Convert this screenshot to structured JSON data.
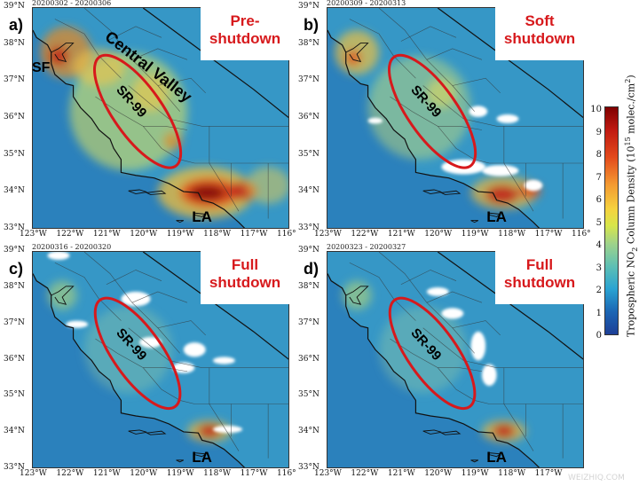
{
  "lon_labels": [
    "123°W",
    "122°W",
    "121°W",
    "120°W",
    "119°W",
    "118°W",
    "117°W",
    "116°"
  ],
  "lat_labels": [
    "39°N",
    "38°N",
    "37°N",
    "36°N",
    "35°N",
    "34°N",
    "33°N"
  ],
  "panels": [
    {
      "letter": "a)",
      "date": "20200302 - 20200306",
      "title_lines": [
        "Pre-",
        "shutdown"
      ],
      "places": {
        "sf": "SF",
        "cv": "Central Valley",
        "sr": "SR-99",
        "la": "LA"
      },
      "intensity": "high"
    },
    {
      "letter": "b)",
      "date": "20200309 - 20200313",
      "title_lines": [
        "Soft",
        "shutdown"
      ],
      "places": {
        "sr": "SR-99",
        "la": "LA"
      },
      "intensity": "medium"
    },
    {
      "letter": "c)",
      "date": "20200316 - 20200320",
      "title_lines": [
        "Full",
        "shutdown"
      ],
      "places": {
        "sr": "SR-99",
        "la": "LA"
      },
      "intensity": "low"
    },
    {
      "letter": "d)",
      "date": "20200323 - 20200327",
      "title_lines": [
        "Full",
        "shutdown"
      ],
      "places": {
        "sr": "SR-99",
        "la": "LA"
      },
      "intensity": "low"
    }
  ],
  "colorbar": {
    "ticks": [
      "10",
      "9",
      "8",
      "7",
      "6",
      "5",
      "4",
      "3",
      "2",
      "1",
      "0"
    ],
    "label_prefix": "Tropospheric NO",
    "label_sub": "2",
    "label_mid": " Column Density (10",
    "label_sup1": "15",
    "label_tail": " molec./cm",
    "label_sup2": "2",
    "label_end": ")"
  },
  "watermark": "WEIZHIQ.COM",
  "colors": {
    "ellipse": "#d7191c",
    "title": "#d7191c",
    "white_mask": "#ffffff"
  }
}
